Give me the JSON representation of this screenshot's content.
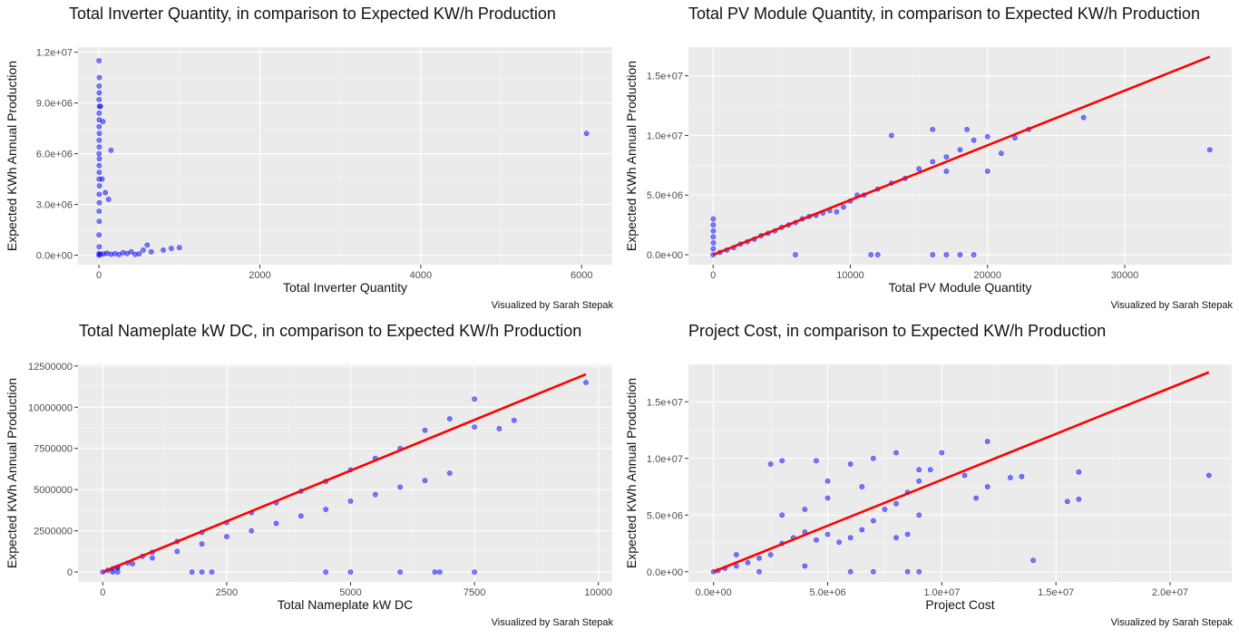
{
  "colors": {
    "panel_bg": "#ebebeb",
    "grid_major": "#ffffff",
    "point": "#0000ff",
    "fit_line": "#ff0000"
  },
  "caption": "Visualized by Sarah Stepak",
  "chart_data": [
    {
      "type": "scatter",
      "title": "Total Inverter Quantity, in comparison to Expected KW/h Production",
      "xlabel": "Total Inverter Quantity",
      "ylabel": "Expected KWh Annual Production",
      "xlim": [
        -260,
        6380
      ],
      "ylim": [
        -560000,
        12300000
      ],
      "xticks": [
        0,
        2000,
        4000,
        6000
      ],
      "xtick_labels": [
        "0",
        "2000",
        "4000",
        "6000"
      ],
      "yticks": [
        0,
        3000000,
        6000000,
        9000000,
        12000000
      ],
      "ytick_labels": [
        "0.0e+00",
        "3.0e+06",
        "6.0e+06",
        "9.0e+06",
        "1.2e+07"
      ],
      "fit_line": null,
      "points": [
        [
          0,
          0
        ],
        [
          2,
          100000
        ],
        [
          3,
          500000
        ],
        [
          1,
          1200000
        ],
        [
          4,
          2000000
        ],
        [
          2,
          2600000
        ],
        [
          5,
          3100000
        ],
        [
          3,
          3600000
        ],
        [
          6,
          4100000
        ],
        [
          2,
          4500000
        ],
        [
          4,
          4900000
        ],
        [
          3,
          5300000
        ],
        [
          5,
          5700000
        ],
        [
          2,
          6000000
        ],
        [
          4,
          6400000
        ],
        [
          3,
          6800000
        ],
        [
          5,
          7200000
        ],
        [
          2,
          7600000
        ],
        [
          4,
          8000000
        ],
        [
          3,
          8400000
        ],
        [
          5,
          8800000
        ],
        [
          2,
          9200000
        ],
        [
          4,
          9600000
        ],
        [
          3,
          10000000
        ],
        [
          5,
          10500000
        ],
        [
          1,
          11500000
        ],
        [
          20,
          8800000
        ],
        [
          50,
          7900000
        ],
        [
          150,
          6200000
        ],
        [
          80,
          3700000
        ],
        [
          120,
          3300000
        ],
        [
          40,
          4500000
        ],
        [
          20,
          50000
        ],
        [
          60,
          80000
        ],
        [
          100,
          120000
        ],
        [
          150,
          60000
        ],
        [
          200,
          90000
        ],
        [
          250,
          40000
        ],
        [
          300,
          150000
        ],
        [
          350,
          100000
        ],
        [
          400,
          200000
        ],
        [
          450,
          50000
        ],
        [
          500,
          80000
        ],
        [
          550,
          300000
        ],
        [
          600,
          600000
        ],
        [
          650,
          200000
        ],
        [
          800,
          300000
        ],
        [
          900,
          400000
        ],
        [
          1000,
          450000
        ],
        [
          6060,
          7200000
        ]
      ]
    },
    {
      "type": "scatter",
      "title": "Total PV Module Quantity, in comparison to Expected KW/h Production",
      "xlabel": "Total PV Module Quantity",
      "ylabel": "Expected KWh Annual Production",
      "xlim": [
        -1800,
        37800
      ],
      "ylim": [
        -830000,
        17400000
      ],
      "xticks": [
        0,
        10000,
        20000,
        30000
      ],
      "xtick_labels": [
        "0",
        "10000",
        "20000",
        "30000"
      ],
      "yticks": [
        0,
        5000000,
        10000000,
        15000000
      ],
      "ytick_labels": [
        "0.0e+00",
        "5.0e+06",
        "1.0e+07",
        "1.5e+07"
      ],
      "fit_line": {
        "x": [
          0,
          36200
        ],
        "y": [
          0,
          16600000
        ]
      },
      "points": [
        [
          0,
          0
        ],
        [
          10,
          500000
        ],
        [
          20,
          1000000
        ],
        [
          5,
          1500000
        ],
        [
          15,
          2000000
        ],
        [
          8,
          2500000
        ],
        [
          12,
          3000000
        ],
        [
          500,
          200000
        ],
        [
          1000,
          400000
        ],
        [
          1500,
          600000
        ],
        [
          2000,
          900000
        ],
        [
          2500,
          1100000
        ],
        [
          3000,
          1300000
        ],
        [
          3500,
          1600000
        ],
        [
          4000,
          1800000
        ],
        [
          4500,
          2000000
        ],
        [
          5000,
          2300000
        ],
        [
          5500,
          2500000
        ],
        [
          6000,
          2700000
        ],
        [
          6500,
          3000000
        ],
        [
          7000,
          3200000
        ],
        [
          7500,
          3300000
        ],
        [
          8000,
          3500000
        ],
        [
          8500,
          3700000
        ],
        [
          9000,
          3600000
        ],
        [
          9500,
          4000000
        ],
        [
          10000,
          4500000
        ],
        [
          11000,
          5000000
        ],
        [
          12000,
          5500000
        ],
        [
          13000,
          6000000
        ],
        [
          14000,
          6400000
        ],
        [
          15000,
          7200000
        ],
        [
          16000,
          7800000
        ],
        [
          17000,
          8200000
        ],
        [
          18000,
          8800000
        ],
        [
          19000,
          9600000
        ],
        [
          20000,
          9900000
        ],
        [
          21000,
          8500000
        ],
        [
          22000,
          9800000
        ],
        [
          23000,
          10500000
        ],
        [
          13000,
          10000000
        ],
        [
          16000,
          10500000
        ],
        [
          18500,
          10500000
        ],
        [
          20000,
          7000000
        ],
        [
          17000,
          7000000
        ],
        [
          27000,
          11500000
        ],
        [
          36200,
          8800000
        ],
        [
          11500,
          0
        ],
        [
          12000,
          0
        ],
        [
          16000,
          0
        ],
        [
          17000,
          0
        ],
        [
          18000,
          0
        ],
        [
          19000,
          0
        ],
        [
          6000,
          0
        ],
        [
          10500,
          5000000
        ]
      ]
    },
    {
      "type": "scatter",
      "title": "Total Nameplate kW DC, in comparison to Expected KW/h Production",
      "xlabel": "Total Nameplate kW DC",
      "ylabel": "Expected KWh Annual Production",
      "xlim": [
        -500,
        10280
      ],
      "ylim": [
        -600000,
        12600000
      ],
      "xticks": [
        0,
        2500,
        5000,
        7500,
        10000
      ],
      "xtick_labels": [
        "0",
        "2500",
        "5000",
        "7500",
        "10000"
      ],
      "yticks": [
        0,
        2500000,
        5000000,
        7500000,
        10000000,
        12500000
      ],
      "ytick_labels": [
        "0",
        "2500000",
        "5000000",
        "7500000",
        "10000000",
        "12500000"
      ],
      "fit_line": {
        "x": [
          0,
          9750
        ],
        "y": [
          0,
          12000000
        ]
      },
      "points": [
        [
          0,
          0
        ],
        [
          100,
          100000
        ],
        [
          200,
          200000
        ],
        [
          300,
          300000
        ],
        [
          500,
          550000
        ],
        [
          800,
          950000
        ],
        [
          1000,
          1200000
        ],
        [
          1500,
          1850000
        ],
        [
          2000,
          2400000
        ],
        [
          2500,
          3000000
        ],
        [
          3000,
          3600000
        ],
        [
          3500,
          4200000
        ],
        [
          4000,
          4900000
        ],
        [
          4500,
          5500000
        ],
        [
          5000,
          6200000
        ],
        [
          5500,
          6900000
        ],
        [
          6000,
          7500000
        ],
        [
          6500,
          8600000
        ],
        [
          7000,
          9300000
        ],
        [
          7500,
          10500000
        ],
        [
          300,
          250000
        ],
        [
          600,
          500000
        ],
        [
          1000,
          850000
        ],
        [
          1500,
          1250000
        ],
        [
          2000,
          1700000
        ],
        [
          2500,
          2150000
        ],
        [
          3000,
          2500000
        ],
        [
          3500,
          2950000
        ],
        [
          4000,
          3400000
        ],
        [
          4500,
          3800000
        ],
        [
          5000,
          4300000
        ],
        [
          5500,
          4700000
        ],
        [
          6000,
          5150000
        ],
        [
          6500,
          5550000
        ],
        [
          7000,
          6000000
        ],
        [
          7500,
          8800000
        ],
        [
          8000,
          8700000
        ],
        [
          8300,
          9200000
        ],
        [
          9750,
          11500000
        ],
        [
          2000,
          0
        ],
        [
          2200,
          0
        ],
        [
          1800,
          0
        ],
        [
          4500,
          0
        ],
        [
          5000,
          0
        ],
        [
          6000,
          0
        ],
        [
          6700,
          0
        ],
        [
          6800,
          0
        ],
        [
          7500,
          0
        ],
        [
          200,
          0
        ],
        [
          300,
          0
        ]
      ]
    },
    {
      "type": "scatter",
      "title": "Project Cost, in comparison to Expected KW/h Production",
      "xlabel": "Project Cost",
      "ylabel": "Expected KWh Annual Production",
      "xlim": [
        -1100000,
        22700000
      ],
      "ylim": [
        -900000,
        18300000
      ],
      "xticks": [
        0,
        5000000,
        10000000,
        15000000,
        20000000
      ],
      "xtick_labels": [
        "0.0e+00",
        "5.0e+06",
        "1.0e+07",
        "1.5e+07",
        "2.0e+07"
      ],
      "yticks": [
        0,
        5000000,
        10000000,
        15000000
      ],
      "ytick_labels": [
        "0.0e+00",
        "5.0e+06",
        "1.0e+07",
        "1.5e+07"
      ],
      "fit_line": {
        "x": [
          0,
          21700000
        ],
        "y": [
          0,
          17600000
        ]
      },
      "points": [
        [
          0,
          0
        ],
        [
          200000,
          100000
        ],
        [
          500000,
          300000
        ],
        [
          1000000,
          500000
        ],
        [
          1500000,
          800000
        ],
        [
          2000000,
          1200000
        ],
        [
          2500000,
          1500000
        ],
        [
          3000000,
          2500000
        ],
        [
          3500000,
          3000000
        ],
        [
          4000000,
          3500000
        ],
        [
          4500000,
          2800000
        ],
        [
          5000000,
          3300000
        ],
        [
          5500000,
          2600000
        ],
        [
          6000000,
          3000000
        ],
        [
          6500000,
          3700000
        ],
        [
          7000000,
          4500000
        ],
        [
          7500000,
          5500000
        ],
        [
          8000000,
          6000000
        ],
        [
          8500000,
          7000000
        ],
        [
          9000000,
          8000000
        ],
        [
          9500000,
          9000000
        ],
        [
          10000000,
          10500000
        ],
        [
          11000000,
          8500000
        ],
        [
          11500000,
          6500000
        ],
        [
          12000000,
          7500000
        ],
        [
          12000000,
          11500000
        ],
        [
          13000000,
          8300000
        ],
        [
          13500000,
          8400000
        ],
        [
          14000000,
          1000000
        ],
        [
          15500000,
          6200000
        ],
        [
          16000000,
          6400000
        ],
        [
          16000000,
          8800000
        ],
        [
          21700000,
          8500000
        ],
        [
          5000000,
          8000000
        ],
        [
          6000000,
          9500000
        ],
        [
          7000000,
          10000000
        ],
        [
          8000000,
          10500000
        ],
        [
          9000000,
          9000000
        ],
        [
          3000000,
          9800000
        ],
        [
          2500000,
          9500000
        ],
        [
          4500000,
          9800000
        ],
        [
          6000000,
          0
        ],
        [
          7000000,
          0
        ],
        [
          8500000,
          0
        ],
        [
          9000000,
          0
        ],
        [
          4000000,
          500000
        ],
        [
          2000000,
          0
        ],
        [
          3000000,
          5000000
        ],
        [
          4000000,
          5500000
        ],
        [
          5000000,
          6500000
        ],
        [
          6500000,
          7500000
        ],
        [
          8000000,
          3000000
        ],
        [
          8500000,
          3300000
        ],
        [
          9000000,
          5000000
        ],
        [
          1000000,
          1500000
        ]
      ]
    }
  ]
}
